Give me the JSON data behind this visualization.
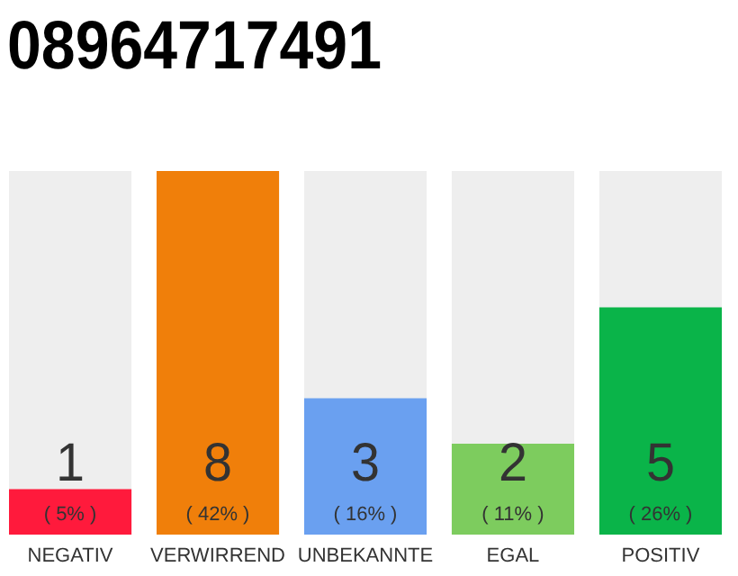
{
  "chart_data": {
    "type": "bar",
    "title": "08964717491",
    "categories": [
      "NEGATIV",
      "VERWIRREND",
      "UNBEKANNTE",
      "EGAL",
      "POSITIV"
    ],
    "values": [
      1,
      8,
      3,
      2,
      5
    ],
    "colors": [
      "#ff1a3c",
      "#f07f0a",
      "#6aa0f0",
      "#7dcc5e",
      "#0ab449"
    ],
    "data_labels": true,
    "annotations": [
      "( 5% )",
      "( 42% )",
      "( 16% )",
      "( 11% )",
      "( 26% )"
    ]
  }
}
